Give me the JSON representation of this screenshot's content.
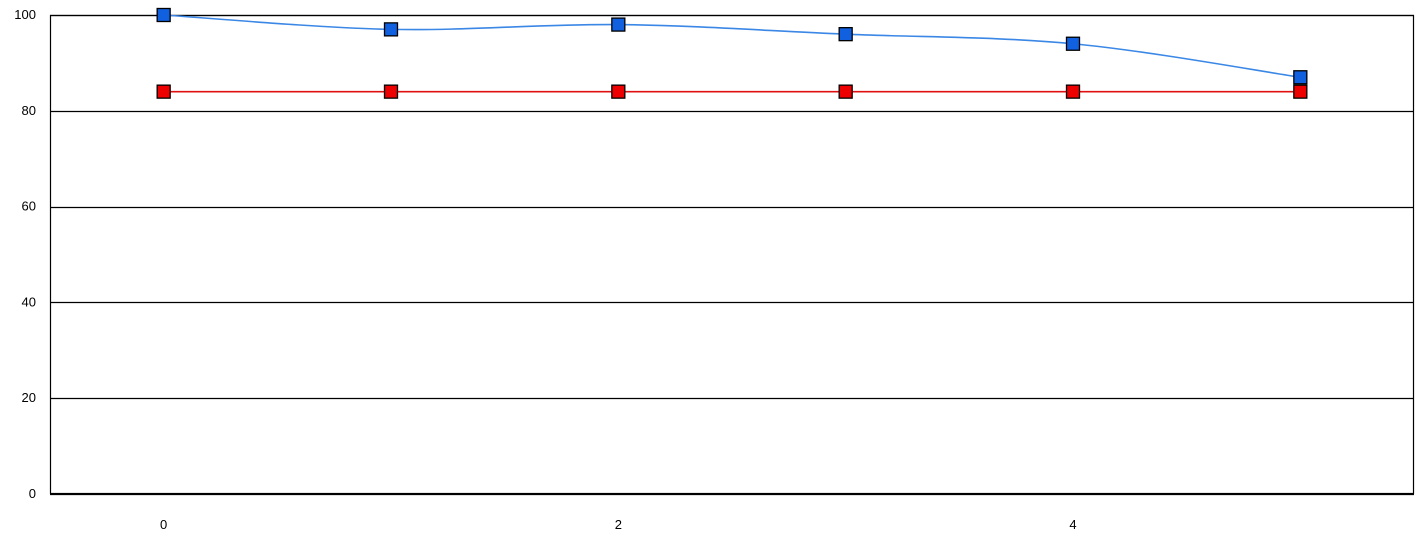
{
  "chart_data": {
    "type": "line",
    "title": "",
    "xlabel": "",
    "ylabel": "",
    "x": [
      0,
      1,
      2,
      3,
      4,
      5
    ],
    "xlim": [
      -0.5,
      5.5
    ],
    "ylim": [
      0,
      100
    ],
    "x_ticks": [
      0,
      2,
      4
    ],
    "y_ticks": [
      0,
      20,
      40,
      60,
      80,
      100
    ],
    "grid": "horizontal",
    "legend": "none",
    "series": [
      {
        "values": [
          100,
          97,
          98,
          96,
          94,
          87
        ],
        "color": "#3b87e6",
        "marker_color": "#1060e0",
        "smooth": true
      },
      {
        "values": [
          84,
          84,
          84,
          84,
          84,
          84
        ],
        "color": "#e01010",
        "marker_color": "#ee0000",
        "smooth": false
      }
    ]
  }
}
